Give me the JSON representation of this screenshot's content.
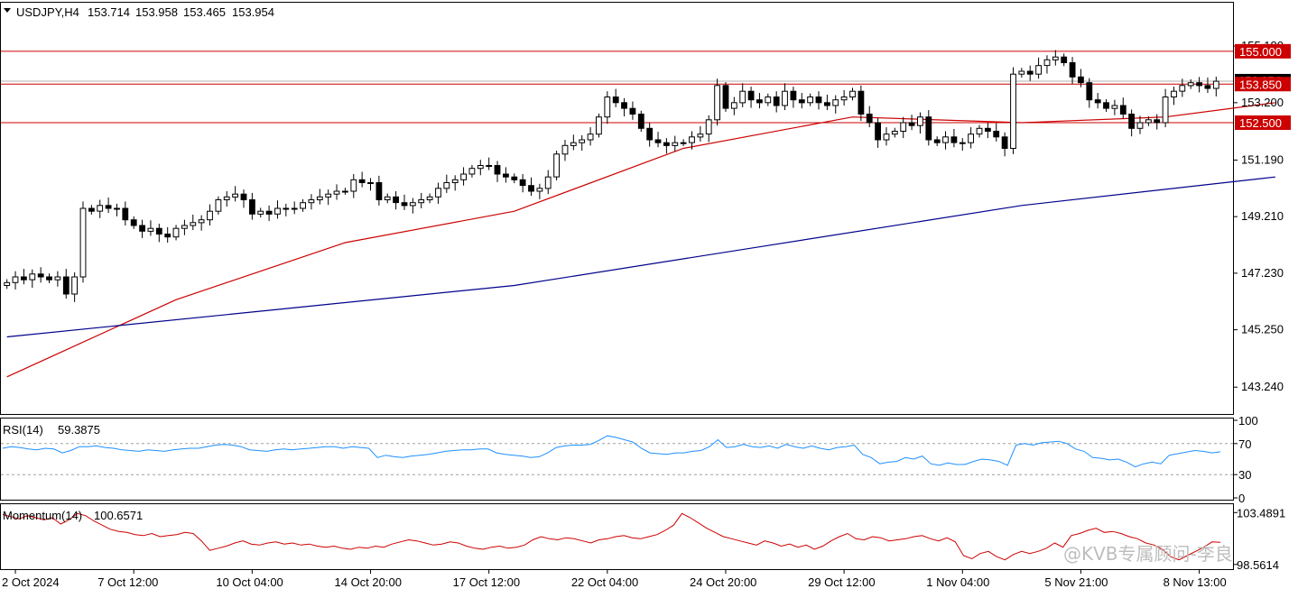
{
  "symbol_header": {
    "symbol": "USDJPY,H4",
    "open": "153.714",
    "high": "153.958",
    "low": "153.465",
    "close": "153.954"
  },
  "watermark": "@KVB专属顾问-李良",
  "colors": {
    "background": "#ffffff",
    "bull_candle": "#ffffff",
    "bear_candle": "#000000",
    "ma_fast": "#cc0000",
    "ma_slow": "#00008b",
    "level_line": "#cc0000",
    "level_label_bg": "#cc0000",
    "rsi_line": "#1e90ff",
    "momentum_line": "#cc0000"
  },
  "chart_data": [
    {
      "type": "candlestick",
      "title": "USDJPY,H4",
      "x_tick_labels": [
        "2 Oct 2024",
        "7 Oct 12:00",
        "10 Oct 04:00",
        "14 Oct 20:00",
        "17 Oct 12:00",
        "22 Oct 04:00",
        "24 Oct 20:00",
        "29 Oct 12:00",
        "1 Nov 04:00",
        "5 Nov 21:00",
        "8 Nov 13:00"
      ],
      "y_tick_labels": [
        "155.180",
        "153.200",
        "151.190",
        "149.210",
        "147.230",
        "145.250",
        "143.240"
      ],
      "ylim": [
        142.3,
        156.7
      ],
      "levels": [
        {
          "value": 155.0,
          "label": "155.000"
        },
        {
          "value": 153.85,
          "label": "153.850"
        },
        {
          "value": 152.5,
          "label": "152.500"
        }
      ],
      "current_price": 153.954,
      "close_series": [
        146.9,
        147.1,
        147.0,
        147.2,
        147.1,
        147.0,
        147.1,
        146.5,
        147.1,
        149.5,
        149.4,
        149.6,
        149.5,
        149.5,
        149.1,
        148.9,
        148.7,
        148.8,
        148.6,
        148.5,
        148.8,
        148.9,
        149.0,
        149.1,
        149.4,
        149.8,
        149.9,
        150.0,
        149.8,
        149.3,
        149.4,
        149.3,
        149.5,
        149.5,
        149.5,
        149.7,
        149.8,
        149.9,
        150.0,
        150.1,
        150.1,
        150.5,
        150.4,
        150.4,
        149.8,
        149.9,
        149.7,
        149.6,
        149.7,
        149.8,
        149.9,
        150.2,
        150.4,
        150.5,
        150.7,
        150.9,
        151.0,
        151.0,
        150.7,
        150.6,
        150.5,
        150.3,
        150.1,
        150.2,
        150.6,
        151.4,
        151.7,
        151.8,
        151.9,
        152.1,
        152.7,
        153.4,
        153.2,
        153.0,
        152.8,
        152.3,
        151.9,
        151.8,
        151.7,
        151.8,
        151.8,
        152.0,
        152.1,
        152.6,
        153.8,
        153.0,
        153.2,
        153.6,
        153.3,
        153.2,
        153.4,
        153.1,
        153.6,
        153.3,
        153.2,
        153.4,
        153.2,
        153.1,
        153.3,
        153.4,
        153.6,
        152.8,
        152.5,
        151.9,
        152.1,
        152.2,
        152.5,
        152.4,
        152.7,
        151.9,
        151.8,
        152.0,
        151.8,
        151.8,
        152.1,
        152.3,
        152.2,
        152.0,
        151.6,
        154.2,
        154.3,
        154.2,
        154.5,
        154.7,
        154.8,
        154.6,
        154.1,
        153.9,
        153.3,
        153.2,
        153.0,
        153.1,
        152.8,
        152.3,
        152.5,
        152.6,
        152.5,
        153.4,
        153.6,
        153.8,
        153.9,
        153.8,
        153.7,
        153.95
      ],
      "series": [
        {
          "name": "",
          "type": "ma",
          "color": "#cc0000",
          "x": [
            0,
            20,
            40,
            60,
            80,
            100,
            120,
            137,
            150
          ],
          "values": [
            143.6,
            146.3,
            148.3,
            149.4,
            151.6,
            152.7,
            152.5,
            152.7,
            153.2
          ]
        },
        {
          "name": "",
          "type": "ma",
          "color": "#00008b",
          "x": [
            0,
            30,
            60,
            90,
            120,
            150
          ],
          "values": [
            145.0,
            145.9,
            146.8,
            148.2,
            149.6,
            150.6
          ]
        }
      ]
    },
    {
      "type": "line",
      "title": "RSI(14)",
      "current_value_label": "59.3875",
      "y_tick_labels": [
        "100",
        "70",
        "30",
        "0"
      ],
      "ylim": [
        0,
        100
      ],
      "reference_levels": [
        70,
        30
      ],
      "series": [
        {
          "name": "RSI(14)",
          "color": "#1e90ff",
          "values": [
            64,
            66,
            65,
            63,
            62,
            64,
            63,
            58,
            61,
            66,
            66,
            67,
            65,
            64,
            62,
            61,
            60,
            62,
            61,
            60,
            62,
            63,
            64,
            64,
            66,
            68,
            69,
            68,
            66,
            62,
            61,
            60,
            62,
            63,
            62,
            63,
            64,
            65,
            66,
            66,
            64,
            66,
            65,
            64,
            52,
            55,
            53,
            52,
            54,
            55,
            56,
            58,
            60,
            61,
            62,
            62,
            63,
            63,
            58,
            56,
            55,
            54,
            52,
            53,
            58,
            65,
            67,
            68,
            68,
            69,
            74,
            80,
            78,
            75,
            72,
            64,
            58,
            57,
            56,
            58,
            58,
            60,
            61,
            66,
            75,
            65,
            66,
            69,
            66,
            65,
            67,
            64,
            69,
            66,
            64,
            67,
            64,
            62,
            65,
            66,
            68,
            56,
            52,
            44,
            46,
            47,
            52,
            50,
            54,
            44,
            42,
            45,
            43,
            43,
            47,
            50,
            49,
            47,
            42,
            68,
            70,
            68,
            71,
            72,
            73,
            70,
            63,
            60,
            52,
            51,
            49,
            50,
            46,
            40,
            44,
            46,
            44,
            55,
            57,
            59,
            61,
            60,
            58,
            59.4
          ]
        }
      ]
    },
    {
      "type": "line",
      "title": "Momentum(14)",
      "current_value_label": "100.6571",
      "y_tick_labels": [
        "103.4891",
        "98.5614"
      ],
      "ylim": [
        98.2,
        104.2
      ],
      "series": [
        {
          "name": "Momentum(14)",
          "color": "#cc0000",
          "values": [
            103.3,
            103.1,
            102.9,
            103.2,
            103.0,
            102.8,
            103.0,
            102.4,
            102.8,
            103.4,
            103.2,
            102.7,
            102.3,
            101.9,
            101.7,
            101.6,
            101.4,
            101.3,
            101.5,
            101.2,
            101.3,
            101.4,
            101.6,
            101.5,
            100.8,
            99.9,
            100.1,
            100.3,
            100.6,
            100.8,
            100.5,
            100.4,
            100.6,
            100.7,
            100.5,
            100.6,
            100.4,
            100.5,
            100.3,
            100.2,
            100.3,
            100.1,
            100.0,
            100.2,
            100.1,
            100.3,
            100.2,
            100.5,
            100.7,
            100.9,
            100.8,
            100.6,
            100.4,
            100.5,
            100.7,
            100.6,
            100.3,
            100.1,
            100.0,
            100.2,
            100.3,
            100.1,
            100.2,
            100.4,
            100.9,
            101.2,
            101.0,
            100.9,
            101.1,
            101.0,
            100.8,
            100.6,
            100.9,
            101.0,
            101.2,
            101.3,
            101.1,
            101.0,
            101.2,
            101.4,
            101.8,
            102.3,
            103.4,
            103.0,
            102.5,
            102.0,
            101.6,
            101.2,
            101.0,
            100.8,
            100.6,
            100.4,
            100.8,
            100.6,
            100.3,
            100.5,
            100.2,
            100.4,
            100.0,
            100.3,
            100.8,
            101.2,
            101.5,
            101.0,
            100.9,
            101.2,
            101.1,
            100.8,
            100.9,
            101.0,
            101.2,
            101.3,
            101.0,
            100.8,
            101.1,
            100.7,
            99.4,
            99.1,
            99.6,
            99.8,
            99.3,
            99.0,
            99.5,
            99.8,
            99.6,
            99.8,
            100.1,
            100.6,
            100.2,
            101.3,
            101.5,
            101.8,
            102.0,
            101.6,
            101.7,
            101.5,
            101.2,
            101.0,
            100.6,
            100.4,
            100.0,
            99.3,
            99.0,
            99.4,
            99.8,
            100.2,
            100.7,
            100.66
          ]
        }
      ]
    }
  ]
}
